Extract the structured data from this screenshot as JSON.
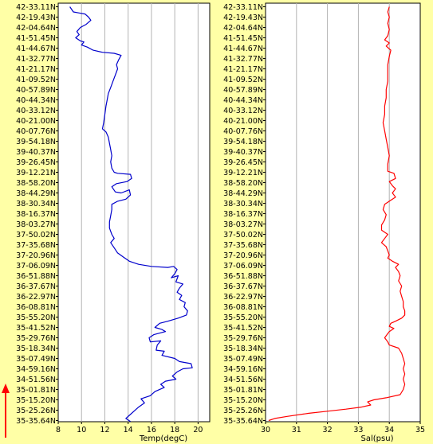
{
  "chart_data": [
    {
      "type": "line",
      "xlabel": "Temp(degC)",
      "xlim": [
        8,
        21
      ],
      "xticks": [
        "8",
        "10",
        "12",
        "14",
        "16",
        "18",
        "20"
      ],
      "ylabel_orientation": "latitude increasing upward",
      "yticks": [
        "42-33.11N",
        "42-19.43N",
        "42-04.64N",
        "41-51.45N",
        "41-44.67N",
        "41-32.77N",
        "41-21.17N",
        "41-09.52N",
        "40-57.89N",
        "40-44.34N",
        "40-33.12N",
        "40-21.00N",
        "40-07.76N",
        "39-54.18N",
        "39-40.37N",
        "39-26.45N",
        "39-12.21N",
        "38-58.20N",
        "38-44.29N",
        "38-30.34N",
        "38-16.37N",
        "38-03.27N",
        "37-50.02N",
        "37-35.68N",
        "37-20.96N",
        "37-06.09N",
        "36-51.88N",
        "36-37.67N",
        "36-22.97N",
        "36-08.81N",
        "35-55.20N",
        "35-41.52N",
        "35-29.76N",
        "35-18.34N",
        "35-07.49N",
        "34-59.16N",
        "34-51.56N",
        "35-01.81N",
        "35-15.20N",
        "35-25.26N",
        "35-35.64N"
      ],
      "grid": true,
      "series": [
        {
          "color": "#0000cc",
          "points": [
            [
              9.0,
              0
            ],
            [
              9.3,
              0.5
            ],
            [
              9.8,
              0.6
            ],
            [
              10.3,
              0.7
            ],
            [
              10.6,
              1.0
            ],
            [
              10.8,
              1.3
            ],
            [
              10.4,
              1.7
            ],
            [
              9.9,
              2.0
            ],
            [
              9.6,
              2.4
            ],
            [
              9.8,
              2.7
            ],
            [
              9.5,
              3.0
            ],
            [
              9.9,
              3.3
            ],
            [
              10.2,
              3.4
            ],
            [
              10.0,
              3.7
            ],
            [
              10.5,
              3.9
            ],
            [
              11.0,
              4.2
            ],
            [
              11.8,
              4.4
            ],
            [
              12.8,
              4.5
            ],
            [
              13.4,
              4.7
            ],
            [
              13.2,
              5.1
            ],
            [
              13.0,
              5.6
            ],
            [
              13.1,
              6.0
            ],
            [
              12.9,
              6.6
            ],
            [
              12.7,
              7.2
            ],
            [
              12.5,
              7.8
            ],
            [
              12.3,
              8.4
            ],
            [
              12.2,
              9.0
            ],
            [
              12.1,
              9.6
            ],
            [
              12.0,
              10.4
            ],
            [
              11.9,
              11.2
            ],
            [
              11.8,
              11.8
            ],
            [
              12.1,
              12.1
            ],
            [
              12.3,
              12.6
            ],
            [
              12.4,
              13.2
            ],
            [
              12.5,
              13.8
            ],
            [
              12.6,
              14.4
            ],
            [
              12.5,
              15.0
            ],
            [
              12.6,
              15.6
            ],
            [
              12.8,
              16.0
            ],
            [
              13.1,
              16.1
            ],
            [
              14.2,
              16.2
            ],
            [
              14.3,
              16.6
            ],
            [
              13.9,
              16.9
            ],
            [
              13.0,
              17.1
            ],
            [
              12.6,
              17.4
            ],
            [
              12.9,
              17.9
            ],
            [
              13.4,
              18.0
            ],
            [
              14.1,
              17.7
            ],
            [
              14.2,
              18.2
            ],
            [
              13.8,
              18.6
            ],
            [
              13.1,
              18.8
            ],
            [
              12.6,
              19.1
            ],
            [
              12.6,
              19.6
            ],
            [
              12.5,
              20.2
            ],
            [
              12.4,
              20.8
            ],
            [
              12.4,
              21.4
            ],
            [
              12.6,
              22.0
            ],
            [
              12.8,
              22.4
            ],
            [
              12.5,
              22.8
            ],
            [
              12.8,
              23.3
            ],
            [
              13.1,
              23.8
            ],
            [
              13.6,
              24.2
            ],
            [
              14.1,
              24.6
            ],
            [
              14.9,
              24.9
            ],
            [
              16.0,
              25.1
            ],
            [
              17.4,
              25.2
            ],
            [
              17.9,
              25.1
            ],
            [
              18.2,
              25.4
            ],
            [
              18.0,
              25.8
            ],
            [
              17.7,
              26.2
            ],
            [
              18.3,
              26.0
            ],
            [
              18.1,
              26.6
            ],
            [
              18.7,
              26.8
            ],
            [
              18.4,
              27.2
            ],
            [
              18.2,
              27.6
            ],
            [
              18.6,
              27.9
            ],
            [
              18.4,
              28.3
            ],
            [
              18.9,
              28.6
            ],
            [
              18.8,
              29.0
            ],
            [
              19.1,
              29.4
            ],
            [
              19.0,
              29.8
            ],
            [
              18.3,
              30.1
            ],
            [
              17.4,
              30.4
            ],
            [
              16.7,
              30.6
            ],
            [
              16.3,
              31.0
            ],
            [
              16.9,
              31.2
            ],
            [
              17.2,
              31.4
            ],
            [
              16.2,
              31.7
            ],
            [
              15.8,
              32.0
            ],
            [
              15.9,
              32.4
            ],
            [
              16.8,
              32.3
            ],
            [
              16.5,
              32.7
            ],
            [
              16.4,
              33.2
            ],
            [
              17.1,
              33.3
            ],
            [
              16.9,
              33.7
            ],
            [
              18.0,
              34.0
            ],
            [
              18.4,
              34.3
            ],
            [
              19.4,
              34.5
            ],
            [
              19.5,
              34.9
            ],
            [
              18.7,
              35.0
            ],
            [
              18.2,
              35.3
            ],
            [
              17.8,
              35.7
            ],
            [
              18.1,
              36.0
            ],
            [
              17.2,
              36.2
            ],
            [
              16.8,
              36.5
            ],
            [
              17.1,
              36.8
            ],
            [
              16.3,
              37.2
            ],
            [
              15.9,
              37.6
            ],
            [
              15.1,
              37.9
            ],
            [
              15.4,
              38.3
            ],
            [
              14.9,
              38.7
            ],
            [
              14.5,
              39.1
            ],
            [
              14.1,
              39.5
            ],
            [
              13.8,
              39.8
            ],
            [
              14.2,
              40.1
            ]
          ]
        }
      ]
    },
    {
      "type": "line",
      "xlabel": "Sal(psu)",
      "xlim": [
        30,
        35
      ],
      "xticks": [
        "30",
        "31",
        "32",
        "33",
        "34",
        "35"
      ],
      "yticks": [],
      "grid": true,
      "series": [
        {
          "color": "#ff0000",
          "points": [
            [
              34.0,
              0
            ],
            [
              33.95,
              0.5
            ],
            [
              34.0,
              1.0
            ],
            [
              33.95,
              1.6
            ],
            [
              34.0,
              2.2
            ],
            [
              33.95,
              2.8
            ],
            [
              33.85,
              3.2
            ],
            [
              34.0,
              3.5
            ],
            [
              33.9,
              3.8
            ],
            [
              34.05,
              4.2
            ],
            [
              34.0,
              4.8
            ],
            [
              33.95,
              5.6
            ],
            [
              33.95,
              6.4
            ],
            [
              33.95,
              7.2
            ],
            [
              33.9,
              8.0
            ],
            [
              33.9,
              8.8
            ],
            [
              33.85,
              9.6
            ],
            [
              33.85,
              10.4
            ],
            [
              33.8,
              11.2
            ],
            [
              33.85,
              12.0
            ],
            [
              33.9,
              12.8
            ],
            [
              33.95,
              13.6
            ],
            [
              34.0,
              14.4
            ],
            [
              33.95,
              15.2
            ],
            [
              33.95,
              15.9
            ],
            [
              34.15,
              16.1
            ],
            [
              34.2,
              16.6
            ],
            [
              34.0,
              16.9
            ],
            [
              34.1,
              17.3
            ],
            [
              34.2,
              17.6
            ],
            [
              34.1,
              18.0
            ],
            [
              34.2,
              18.4
            ],
            [
              34.0,
              18.8
            ],
            [
              33.85,
              19.1
            ],
            [
              33.8,
              19.6
            ],
            [
              33.9,
              20.1
            ],
            [
              33.85,
              20.6
            ],
            [
              33.75,
              21.1
            ],
            [
              33.75,
              21.6
            ],
            [
              33.95,
              22.0
            ],
            [
              33.85,
              22.4
            ],
            [
              33.75,
              22.8
            ],
            [
              33.9,
              23.2
            ],
            [
              33.95,
              23.6
            ],
            [
              34.0,
              24.0
            ],
            [
              33.95,
              24.3
            ],
            [
              34.1,
              24.6
            ],
            [
              34.3,
              24.9
            ],
            [
              34.2,
              25.2
            ],
            [
              34.3,
              25.6
            ],
            [
              34.35,
              26.0
            ],
            [
              34.3,
              26.5
            ],
            [
              34.4,
              27.0
            ],
            [
              34.35,
              27.5
            ],
            [
              34.4,
              28.0
            ],
            [
              34.45,
              28.5
            ],
            [
              34.45,
              29.0
            ],
            [
              34.5,
              29.4
            ],
            [
              34.5,
              29.8
            ],
            [
              34.4,
              30.1
            ],
            [
              34.2,
              30.4
            ],
            [
              34.05,
              30.6
            ],
            [
              34.0,
              30.9
            ],
            [
              34.15,
              31.1
            ],
            [
              34.0,
              31.4
            ],
            [
              33.9,
              31.8
            ],
            [
              33.85,
              32.0
            ],
            [
              33.95,
              32.4
            ],
            [
              34.0,
              32.7
            ],
            [
              34.3,
              33.0
            ],
            [
              34.4,
              33.5
            ],
            [
              34.45,
              34.0
            ],
            [
              34.5,
              34.5
            ],
            [
              34.45,
              35.0
            ],
            [
              34.5,
              35.5
            ],
            [
              34.45,
              36.0
            ],
            [
              34.5,
              36.5
            ],
            [
              34.45,
              37.0
            ],
            [
              34.35,
              37.5
            ],
            [
              33.9,
              37.8
            ],
            [
              33.5,
              38.0
            ],
            [
              33.3,
              38.2
            ],
            [
              33.4,
              38.5
            ],
            [
              33.1,
              38.7
            ],
            [
              32.6,
              38.9
            ],
            [
              32.0,
              39.1
            ],
            [
              31.4,
              39.3
            ],
            [
              30.7,
              39.6
            ],
            [
              30.3,
              39.8
            ],
            [
              30.1,
              40.0
            ]
          ]
        }
      ]
    }
  ]
}
